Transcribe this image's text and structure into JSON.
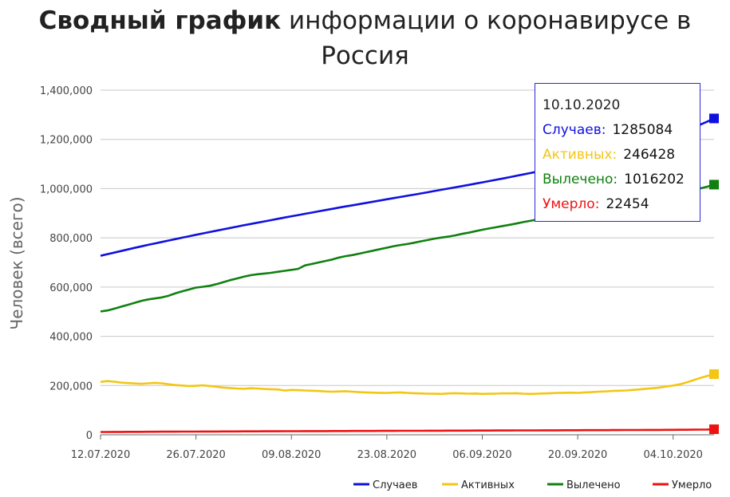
{
  "header": {
    "title_bold": "Сводный график",
    "title_rest": "информации о коронавирусе в Россия"
  },
  "tooltip": {
    "date": "10.10.2020",
    "rows": [
      {
        "label": "Случаев:",
        "value": "1285084",
        "color": "#1010e0"
      },
      {
        "label": "Активных:",
        "value": "246428",
        "color": "#f3c614"
      },
      {
        "label": "Вылечено:",
        "value": "1016202",
        "color": "#108010"
      },
      {
        "label": "Умерло:",
        "value": "22454",
        "color": "#ee1111"
      }
    ]
  },
  "chart_data": {
    "type": "line",
    "ylabel": "Человек (всего)",
    "ylim": [
      0,
      1400000
    ],
    "yticks": [
      "0",
      "200,000",
      "400,000",
      "600,000",
      "800,000",
      "1,000,000",
      "1,200,000",
      "1,400,000"
    ],
    "xticks": [
      "12.07.2020",
      "26.07.2020",
      "09.08.2020",
      "23.08.2020",
      "06.09.2020",
      "20.09.2020",
      "04.10.2020"
    ],
    "x_start": "12.07.2020",
    "x_end": "10.10.2020",
    "grid": true,
    "legend_position": "bottom-right",
    "series": [
      {
        "name": "Случаев",
        "color": "#1010e0",
        "values": [
          727160,
          733699,
          739947,
          746369,
          752797,
          759203,
          765437,
          771546,
          777486,
          783328,
          789190,
          795038,
          800849,
          806720,
          812485,
          818120,
          823515,
          828990,
          834499,
          839981,
          845443,
          850870,
          856264,
          861423,
          866627,
          871894,
          877135,
          882347,
          887536,
          892654,
          897599,
          902701,
          907758,
          912823,
          917884,
          922853,
          927745,
          932493,
          937321,
          942106,
          946976,
          951897,
          956749,
          961493,
          966189,
          970865,
          975576,
          980405,
          985346,
          990326,
          995319,
          1000048,
          1005000,
          1009995,
          1015105,
          1020310,
          1025505,
          1030690,
          1035789,
          1041007,
          1046370,
          1051874,
          1057362,
          1062811,
          1068320,
          1073849,
          1079519,
          1085281,
          1091186,
          1097251,
          1103399,
          1109595,
          1115810,
          1122241,
          1128836,
          1135934,
          1143571,
          1151438,
          1159573,
          1167805,
          1176286,
          1185231,
          1194643,
          1204502,
          1214873,
          1225889,
          1237504,
          1248619,
          1260112,
          1272238,
          1285084
        ]
      },
      {
        "name": "Активных",
        "color": "#f3c614",
        "values": [
          215000,
          218000,
          215500,
          212000,
          210000,
          208500,
          207000,
          209000,
          211000,
          209000,
          205000,
          202000,
          200000,
          198000,
          199000,
          201000,
          198000,
          195000,
          192000,
          190000,
          188000,
          187000,
          189000,
          188000,
          186000,
          185000,
          184000,
          180000,
          182000,
          181000,
          180000,
          179000,
          178000,
          176000,
          175000,
          176000,
          177000,
          175000,
          173000,
          172000,
          171000,
          170500,
          170000,
          171000,
          172000,
          170000,
          169000,
          168000,
          167000,
          166500,
          166000,
          168000,
          169000,
          168000,
          167000,
          167500,
          166000,
          166500,
          167000,
          168500,
          168000,
          169000,
          167000,
          166000,
          166500,
          168000,
          169000,
          170000,
          170500,
          171000,
          170000,
          172000,
          173000,
          175000,
          176000,
          178000,
          179000,
          180000,
          182000,
          184000,
          187000,
          189000,
          192000,
          196000,
          200000,
          205000,
          213000,
          222000,
          231000,
          239000,
          246428
        ]
      },
      {
        "name": "Вылечено",
        "color": "#108010",
        "values": [
          501061,
          505000,
          512000,
          520000,
          528000,
          536000,
          544000,
          550000,
          554000,
          558000,
          565000,
          575000,
          583000,
          590000,
          598000,
          601000,
          605000,
          612000,
          620000,
          628000,
          635000,
          642000,
          648000,
          652000,
          655000,
          658000,
          662000,
          666000,
          670000,
          674000,
          688000,
          694000,
          700000,
          706000,
          712000,
          720000,
          726000,
          730000,
          736000,
          742000,
          748000,
          754000,
          760000,
          766000,
          771000,
          775000,
          780000,
          786000,
          791000,
          797000,
          801000,
          805000,
          810000,
          816000,
          821000,
          827000,
          833000,
          838000,
          843000,
          848000,
          853000,
          858000,
          864000,
          869000,
          874000,
          879000,
          884000,
          889000,
          894000,
          899000,
          904000,
          909000,
          914000,
          919000,
          924000,
          928000,
          932000,
          937000,
          941000,
          946000,
          951000,
          956000,
          961000,
          967000,
          973000,
          980000,
          987000,
          994000,
          1001000,
          1008000,
          1016202
        ]
      },
      {
        "name": "Умерло",
        "color": "#ee1111",
        "values": [
          11281,
          11439,
          11579,
          11717,
          11859,
          11991,
          12125,
          12256,
          12388,
          12510,
          12624,
          12739,
          12854,
          12968,
          13078,
          13194,
          13304,
          13411,
          13516,
          13623,
          13729,
          13847,
          13952,
          14058,
          14158,
          14263,
          14370,
          14490,
          14606,
          14706,
          14791,
          14889,
          14985,
          15069,
          15147,
          15236,
          15329,
          15436,
          15542,
          15621,
          15710,
          15807,
          15899,
          15986,
          16049,
          16134,
          16242,
          16345,
          16448,
          16546,
          16641,
          16710,
          16790,
          16874,
          16987,
          17088,
          17194,
          17299,
          17391,
          17492,
          17589,
          17675,
          17757,
          17848,
          17933,
          18029,
          18136,
          18235,
          18337,
          18425,
          18526,
          18635,
          18738,
          18854,
          18958,
          19054,
          19176,
          19300,
          19421,
          19522,
          19645,
          19774,
          19914,
          20056,
          20174,
          20346,
          20533,
          20777,
          21017,
          21245,
          22454
        ]
      }
    ]
  }
}
